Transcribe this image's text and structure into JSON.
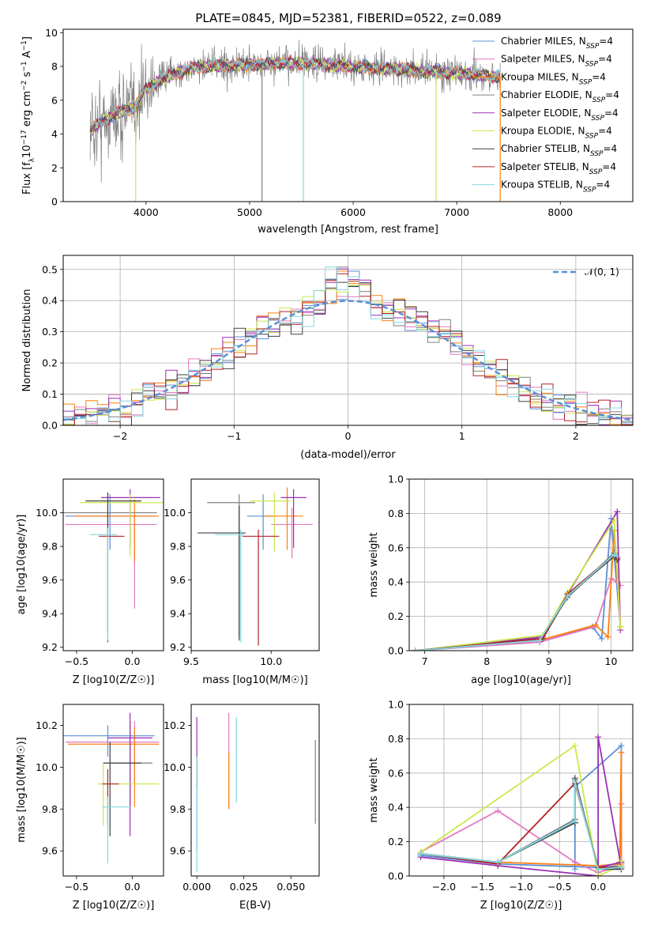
{
  "title": "PLATE=0845, MJD=52381, FIBERID=0522, z=0.089",
  "colors": {
    "Chabrier MILES": "#5b8fd6",
    "Salpeter MILES": "#e377c2",
    "Kroupa MILES": "#ff7f0e",
    "Chabrier ELODIE": "#7f7f7f",
    "Salpeter ELODIE": "#9b30b3",
    "Kroupa ELODIE": "#cce84a",
    "Chabrier STELIB": "#404040",
    "Salpeter STELIB": "#b22222",
    "Kroupa STELIB": "#80d8e0"
  },
  "legend": {
    "models": [
      {
        "pre": "Chabrier MILES, N",
        "sub": "SSP",
        "post": "=4"
      },
      {
        "pre": "Salpeter MILES, N",
        "sub": "SSP",
        "post": "=4"
      },
      {
        "pre": "Kroupa MILES, N",
        "sub": "SSP",
        "post": "=4"
      },
      {
        "pre": "Chabrier ELODIE, N",
        "sub": "SSP",
        "post": "=4"
      },
      {
        "pre": "Salpeter ELODIE, N",
        "sub": "SSP",
        "post": "=4"
      },
      {
        "pre": "Kroupa ELODIE, N",
        "sub": "SSP",
        "post": "=4"
      },
      {
        "pre": "Chabrier STELIB, N",
        "sub": "SSP",
        "post": "=4"
      },
      {
        "pre": "Salpeter STELIB, N",
        "sub": "SSP",
        "post": "=4"
      },
      {
        "pre": "Kroupa STELIB, N",
        "sub": "SSP",
        "post": "=4"
      }
    ],
    "normal": "𝒩(0, 1)"
  },
  "chart_data": [
    {
      "type": "line",
      "name": "spectrum",
      "xlabel": "wavelength [Angstrom, rest frame]",
      "ylabel": "Flux [f_λ 10^-17 erg cm^-2 s^-1 A^-1]",
      "xlim": [
        3200,
        8700
      ],
      "ylim": [
        0,
        10.2
      ],
      "xticks": [
        "4000",
        "5000",
        "6000",
        "7000",
        "8000"
      ],
      "yticks": [
        "0",
        "2",
        "4",
        "6",
        "8",
        "10"
      ],
      "data_range": [
        3460,
        7420
      ],
      "continuum_points": [
        [
          3460,
          4.3
        ],
        [
          3700,
          5.2
        ],
        [
          3900,
          5.6
        ],
        [
          4000,
          6.7
        ],
        [
          4200,
          7.4
        ],
        [
          4500,
          8.0
        ],
        [
          5000,
          8.1
        ],
        [
          5500,
          8.2
        ],
        [
          6000,
          8.0
        ],
        [
          6500,
          7.8
        ],
        [
          7000,
          7.6
        ],
        [
          7400,
          7.4
        ]
      ],
      "spike_lines": [
        3900,
        5120,
        5520,
        6800,
        7420
      ],
      "grid": false
    },
    {
      "type": "line",
      "name": "residual_histogram",
      "xlabel": "(data-model)/error",
      "ylabel": "Normed distribution",
      "xlim": [
        -2.5,
        2.5
      ],
      "ylim": [
        0,
        0.545
      ],
      "xticks": [
        "−2",
        "−1",
        "0",
        "1",
        "2"
      ],
      "yticks": [
        "0.0",
        "0.1",
        "0.2",
        "0.3",
        "0.4",
        "0.5"
      ],
      "bin_width": 0.1,
      "reference_curve": "normal(0,1)",
      "legend_placement": "top-right",
      "grid": true
    },
    {
      "type": "scatter",
      "name": "age_vs_Z",
      "xlabel": "Z [log10(Z/Z☉)]",
      "ylabel": "age [log10(age/yr)]",
      "xlim": [
        -0.62,
        0.28
      ],
      "ylim": [
        9.18,
        10.2
      ],
      "xticks": [
        "−0.5",
        "0.0"
      ],
      "yticks": [
        "9.2",
        "9.4",
        "9.6",
        "9.8",
        "10.0"
      ],
      "points": [
        {
          "model": "Chabrier MILES",
          "x": -0.2,
          "xerr": [
            0.4,
            0.4
          ],
          "y": 9.98,
          "yerr": [
            0.2,
            0.13
          ]
        },
        {
          "model": "Salpeter MILES",
          "x": 0.02,
          "xerr": [
            0.62,
            0.2
          ],
          "y": 9.93,
          "yerr": [
            0.5,
            0.05
          ]
        },
        {
          "model": "Kroupa MILES",
          "x": 0.02,
          "xerr": [
            0.55,
            0.22
          ],
          "y": 9.98,
          "yerr": [
            0.27,
            0.1
          ]
        },
        {
          "model": "Chabrier ELODIE",
          "x": -0.22,
          "xerr": [
            0.5,
            0.44
          ],
          "y": 10.0,
          "yerr": [
            0.7,
            0.05
          ]
        },
        {
          "model": "Salpeter ELODIE",
          "x": -0.02,
          "xerr": [
            0.26,
            0.27
          ],
          "y": 10.09,
          "yerr": [
            0.3,
            0.05
          ]
        },
        {
          "model": "Kroupa ELODIE",
          "x": -0.02,
          "xerr": [
            0.45,
            0.3
          ],
          "y": 10.06,
          "yerr": [
            0.32,
            0.05
          ]
        },
        {
          "model": "Chabrier STELIB",
          "x": -0.22,
          "xerr": [
            0.2,
            0.3
          ],
          "y": 10.07,
          "yerr": [
            0.2,
            0.05
          ]
        },
        {
          "model": "Salpeter STELIB",
          "x": -0.22,
          "xerr": [
            0.08,
            0.15
          ],
          "y": 9.86,
          "yerr": [
            0.63,
            0.04
          ]
        },
        {
          "model": "Kroupa STELIB",
          "x": -0.22,
          "xerr": [
            0.16,
            0.08
          ],
          "y": 9.87,
          "yerr": [
            0.63,
            0.04
          ]
        }
      ]
    },
    {
      "type": "scatter",
      "name": "age_vs_mass",
      "xlabel": "mass [log10(M/M☉)]",
      "xlim": [
        9.5,
        10.3
      ],
      "ylim": [
        9.18,
        10.2
      ],
      "xticks": [
        "9.5",
        "10.0"
      ],
      "yticks": [
        "9.2",
        "9.4",
        "9.6",
        "9.8",
        "10.0"
      ],
      "points": [
        {
          "model": "Chabrier MILES",
          "x": 9.95,
          "xerr": [
            0.1,
            0.08
          ],
          "y": 9.98,
          "yerr": [
            0.2,
            0.13
          ]
        },
        {
          "model": "Salpeter MILES",
          "x": 10.13,
          "xerr": [
            0.13,
            0.13
          ],
          "y": 9.93,
          "yerr": [
            0.2,
            0.1
          ]
        },
        {
          "model": "Kroupa MILES",
          "x": 10.1,
          "xerr": [
            0.15,
            0.1
          ],
          "y": 9.98,
          "yerr": [
            0.2,
            0.17
          ]
        },
        {
          "model": "Chabrier ELODIE",
          "x": 9.8,
          "xerr": [
            0.2,
            0.1
          ],
          "y": 10.06,
          "yerr": [
            0.8,
            0.05
          ]
        },
        {
          "model": "Salpeter ELODIE",
          "x": 10.14,
          "xerr": [
            0.08,
            0.08
          ],
          "y": 10.09,
          "yerr": [
            0.3,
            0.05
          ]
        },
        {
          "model": "Kroupa ELODIE",
          "x": 10.02,
          "xerr": [
            0.15,
            0.1
          ],
          "y": 10.07,
          "yerr": [
            0.3,
            0.05
          ]
        },
        {
          "model": "Chabrier STELIB",
          "x": 9.8,
          "xerr": [
            0.26,
            0.04
          ],
          "y": 9.88,
          "yerr": [
            0.64,
            0.16
          ]
        },
        {
          "model": "Salpeter STELIB",
          "x": 9.92,
          "xerr": [
            0.1,
            0.13
          ],
          "y": 9.86,
          "yerr": [
            0.65,
            0.04
          ]
        },
        {
          "model": "Kroupa STELIB",
          "x": 9.81,
          "xerr": [
            0.16,
            0.02
          ],
          "y": 9.87,
          "yerr": [
            0.64,
            0.03
          ]
        }
      ]
    },
    {
      "type": "line",
      "name": "mass_weight_vs_age",
      "xlabel": "age [log10(age/yr)]",
      "ylabel": "mass weight",
      "xlim": [
        6.75,
        10.35
      ],
      "ylim": [
        0,
        1
      ],
      "xticks": [
        "7",
        "8",
        "9",
        "10"
      ],
      "yticks": [
        "0.0",
        "0.2",
        "0.4",
        "0.6",
        "0.8",
        "1.0"
      ],
      "grid": true,
      "series": [
        {
          "model": "Chabrier MILES",
          "x": [
            6.85,
            8.85,
            9.7,
            9.85,
            10.0,
            10.15
          ],
          "y": [
            0.0,
            0.05,
            0.14,
            0.07,
            0.77,
            0.14
          ]
        },
        {
          "model": "Salpeter MILES",
          "x": [
            6.85,
            8.85,
            9.75,
            10.0,
            10.1,
            10.15
          ],
          "y": [
            0.0,
            0.05,
            0.14,
            0.42,
            0.4,
            0.38
          ]
        },
        {
          "model": "Kroupa MILES",
          "x": [
            6.85,
            8.85,
            9.75,
            9.95,
            10.05,
            10.15
          ],
          "y": [
            0.0,
            0.06,
            0.15,
            0.08,
            0.7,
            0.14
          ]
        },
        {
          "model": "Chabrier ELODIE",
          "x": [
            6.85,
            8.85,
            9.3,
            10.05,
            10.1
          ],
          "y": [
            0.0,
            0.06,
            0.31,
            0.57,
            0.55
          ]
        },
        {
          "model": "Salpeter ELODIE",
          "x": [
            6.85,
            8.9,
            9.3,
            10.1,
            10.15
          ],
          "y": [
            0.0,
            0.08,
            0.33,
            0.81,
            0.12
          ]
        },
        {
          "model": "Kroupa ELODIE",
          "x": [
            6.85,
            8.9,
            9.3,
            10.05,
            10.15
          ],
          "y": [
            0.0,
            0.09,
            0.34,
            0.76,
            0.14
          ]
        },
        {
          "model": "Chabrier STELIB",
          "x": [
            6.85,
            8.9,
            9.3,
            10.05,
            10.1
          ],
          "y": [
            0.0,
            0.07,
            0.32,
            0.55,
            0.53
          ]
        },
        {
          "model": "Salpeter STELIB",
          "x": [
            6.85,
            8.9,
            9.3,
            10.05,
            10.1
          ],
          "y": [
            0.0,
            0.07,
            0.33,
            0.56,
            0.54
          ]
        },
        {
          "model": "Kroupa STELIB",
          "x": [
            6.85,
            8.85,
            9.3,
            10.05,
            10.1
          ],
          "y": [
            0.0,
            0.06,
            0.32,
            0.56,
            0.55
          ]
        }
      ]
    },
    {
      "type": "scatter",
      "name": "mass_vs_Z",
      "xlabel": "Z [log10(Z/Z☉)]",
      "ylabel": "mass [log10(M/M☉)]",
      "xlim": [
        -0.62,
        0.28
      ],
      "ylim": [
        9.48,
        10.3
      ],
      "xticks": [
        "−0.5",
        "0.0"
      ],
      "yticks": [
        "9.6",
        "9.8",
        "10.0",
        "10.2"
      ],
      "points": [
        {
          "model": "Chabrier MILES",
          "x": -0.22,
          "xerr": [
            0.4,
            0.42
          ],
          "y": 10.15,
          "yerr": [
            0.1,
            0.05
          ]
        },
        {
          "model": "Salpeter MILES",
          "x": 0.02,
          "xerr": [
            0.62,
            0.22
          ],
          "y": 10.12,
          "yerr": [
            0.2,
            0.1
          ]
        },
        {
          "model": "Kroupa MILES",
          "x": 0.02,
          "xerr": [
            0.6,
            0.22
          ],
          "y": 10.11,
          "yerr": [
            0.3,
            0.08
          ]
        },
        {
          "model": "Chabrier ELODIE",
          "x": -0.02,
          "xerr": [
            0.2,
            0.2
          ],
          "y": 10.02,
          "yerr": [
            0.2,
            0.2
          ]
        },
        {
          "model": "Salpeter ELODIE",
          "x": -0.02,
          "xerr": [
            0.2,
            0.2
          ],
          "y": 10.14,
          "yerr": [
            0.47,
            0.12
          ]
        },
        {
          "model": "Kroupa ELODIE",
          "x": -0.26,
          "xerr": [
            0.05,
            0.5
          ],
          "y": 9.92,
          "yerr": [
            0.2,
            0.1
          ]
        },
        {
          "model": "Chabrier STELIB",
          "x": -0.2,
          "xerr": [
            0.06,
            0.28
          ],
          "y": 10.02,
          "yerr": [
            0.35,
            0.1
          ]
        },
        {
          "model": "Salpeter STELIB",
          "x": -0.22,
          "xerr": [
            0.05,
            0.1
          ],
          "y": 9.92,
          "yerr": [
            0.2,
            0.07
          ]
        },
        {
          "model": "Kroupa STELIB",
          "x": -0.22,
          "xerr": [
            0.05,
            0.2
          ],
          "y": 9.81,
          "yerr": [
            0.27,
            0.05
          ]
        }
      ]
    },
    {
      "type": "scatter",
      "name": "mass_vs_ebv",
      "xlabel": "E(B-V)",
      "xlim": [
        -0.003,
        0.065
      ],
      "ylim": [
        9.48,
        10.3
      ],
      "xticks": [
        "0.000",
        "0.025",
        "0.050"
      ],
      "yticks": [
        "9.6",
        "9.8",
        "10.0",
        "10.2"
      ],
      "points": [
        {
          "model": "Chabrier MILES",
          "x": 0.0,
          "y": 9.68,
          "yerr": [
            0.08,
            0.35
          ]
        },
        {
          "model": "Salpeter ELODIE",
          "x": 0.0,
          "y": 10.2,
          "yerr": [
            0.15,
            0.04
          ]
        },
        {
          "model": "Salpeter STELIB",
          "x": 0.0,
          "y": 10.0,
          "yerr": [
            0.1,
            0.05
          ]
        },
        {
          "model": "Kroupa STELIB",
          "x": 0.0,
          "y": 9.6,
          "yerr": [
            0.1,
            0.45
          ]
        },
        {
          "model": "Salpeter MILES",
          "x": 0.017,
          "y": 10.1,
          "yerr": [
            0.3,
            0.16
          ]
        },
        {
          "model": "Kroupa MILES",
          "x": 0.017,
          "y": 9.95,
          "yerr": [
            0.15,
            0.12
          ]
        },
        {
          "model": "Kroupa STELIB",
          "x": 0.021,
          "y": 10.05,
          "yerr": [
            0.22,
            0.19
          ]
        },
        {
          "model": "Chabrier ELODIE",
          "x": 0.063,
          "y": 9.93,
          "yerr": [
            0.2,
            0.2
          ]
        }
      ]
    },
    {
      "type": "line",
      "name": "mass_weight_vs_Z",
      "xlabel": "Z [log10(Z/Z☉)]",
      "ylabel": "mass weight",
      "xlim": [
        -2.45,
        0.45
      ],
      "ylim": [
        0,
        1
      ],
      "xticks": [
        "−2.0",
        "−1.5",
        "−1.0",
        "−0.5",
        "0.0"
      ],
      "yticks": [
        "0.0",
        "0.2",
        "0.4",
        "0.6",
        "0.8",
        "1.0"
      ],
      "grid": true,
      "series": [
        {
          "model": "Chabrier MILES",
          "x": [
            -2.3,
            -1.3,
            0.0,
            0.3,
            0.3,
            -0.3,
            -0.3
          ],
          "y": [
            0.12,
            0.07,
            0.05,
            0.06,
            0.76,
            0.52,
            0.04
          ]
        },
        {
          "model": "Salpeter MILES",
          "x": [
            -2.3,
            -1.3,
            -0.3,
            0.0,
            0.3,
            0.3
          ],
          "y": [
            0.14,
            0.38,
            0.08,
            0.02,
            0.06,
            0.42
          ]
        },
        {
          "model": "Kroupa MILES",
          "x": [
            -2.3,
            -1.3,
            0.0,
            0.3,
            0.3,
            0.28
          ],
          "y": [
            0.13,
            0.08,
            0.06,
            0.07,
            0.72,
            0.08
          ]
        },
        {
          "model": "Chabrier ELODIE",
          "x": [
            -2.3,
            -1.3,
            -0.3,
            -0.3,
            0.0,
            0.3
          ],
          "y": [
            0.13,
            0.08,
            0.33,
            0.56,
            0.05,
            0.05
          ]
        },
        {
          "model": "Salpeter ELODIE",
          "x": [
            -2.3,
            -1.3,
            0.0,
            0.0,
            0.3,
            0.3,
            0.0
          ],
          "y": [
            0.11,
            0.06,
            0.0,
            0.81,
            0.05,
            0.08,
            0.05
          ]
        },
        {
          "model": "Kroupa ELODIE",
          "x": [
            -2.3,
            -0.3,
            0.0,
            0.3,
            0.3
          ],
          "y": [
            0.14,
            0.76,
            0.0,
            0.06,
            0.09
          ]
        },
        {
          "model": "Chabrier STELIB",
          "x": [
            -2.3,
            -1.3,
            -0.3,
            -0.3,
            0.0,
            0.3
          ],
          "y": [
            0.13,
            0.08,
            0.31,
            0.57,
            0.04,
            0.04
          ]
        },
        {
          "model": "Salpeter STELIB",
          "x": [
            -2.3,
            -1.3,
            -0.3,
            0.0,
            0.3
          ],
          "y": [
            0.13,
            0.07,
            0.54,
            0.05,
            0.05
          ]
        },
        {
          "model": "Kroupa STELIB",
          "x": [
            -2.3,
            -1.3,
            -0.3,
            -0.3,
            0.0,
            0.3
          ],
          "y": [
            0.13,
            0.08,
            0.32,
            0.55,
            0.04,
            0.05
          ]
        }
      ]
    }
  ]
}
